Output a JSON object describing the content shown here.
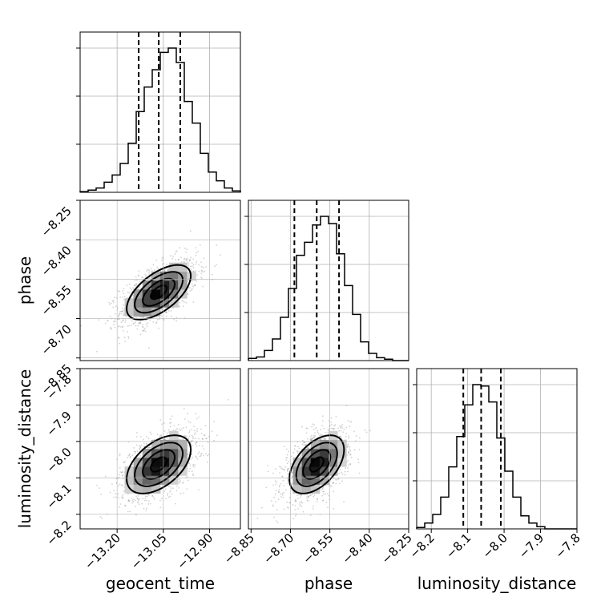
{
  "chart_data": {
    "type": "corner",
    "parameters": [
      "geocent_time",
      "phase",
      "luminosity_distance"
    ],
    "axis_labels": {
      "x": [
        "geocent_time",
        "phase",
        "luminosity_distance"
      ],
      "y": [
        "phase",
        "luminosity_distance"
      ]
    },
    "ranges": {
      "geocent_time": [
        -13.32,
        -12.8
      ],
      "phase": [
        -8.86,
        -8.25
      ],
      "luminosity_distance": [
        -8.24,
        -7.8
      ]
    },
    "ticks": {
      "geocent_time": {
        "values": [
          -13.2,
          -13.05,
          -12.9
        ],
        "labels": [
          "−13.20",
          "−13.05",
          "−12.90"
        ]
      },
      "phase": {
        "values": [
          -8.85,
          -8.7,
          -8.55,
          -8.4,
          -8.25
        ],
        "labels": [
          "−8.85",
          "−8.70",
          "−8.55",
          "−8.40",
          "−8.25"
        ]
      },
      "luminosity_distance": {
        "x_values": [
          -8.2,
          -8.1,
          -8.0,
          -7.9,
          -7.8
        ],
        "x_labels": [
          "−8.2",
          "−8.1",
          "−8.0",
          "−7.9",
          "−7.8"
        ],
        "y_values": [
          -8.2,
          -8.1,
          -8.0,
          -7.9,
          -7.8
        ],
        "y_labels": [
          "−8.2",
          "−8.1",
          "−8.0",
          "−7.9",
          "−7.8"
        ]
      }
    },
    "quantiles": {
      "geocent_time": [
        -13.13,
        -13.065,
        -12.995
      ],
      "phase": [
        -8.685,
        -8.6,
        -8.515
      ],
      "luminosity_distance": [
        -8.112,
        -8.063,
        -8.009
      ]
    },
    "histograms": {
      "geocent_time": {
        "edges": [
          -13.32,
          -13.294,
          -13.268,
          -13.242,
          -13.216,
          -13.19,
          -13.164,
          -13.138,
          -13.112,
          -13.086,
          -13.06,
          -13.034,
          -13.008,
          -12.982,
          -12.956,
          -12.93,
          -12.904,
          -12.878,
          -12.852,
          -12.826,
          -12.8
        ],
        "counts": [
          0.005,
          0.015,
          0.03,
          0.07,
          0.12,
          0.2,
          0.34,
          0.56,
          0.73,
          0.85,
          0.97,
          1.0,
          0.9,
          0.63,
          0.48,
          0.27,
          0.14,
          0.08,
          0.03,
          0.01
        ]
      },
      "phase": {
        "edges": [
          -8.86,
          -8.8295,
          -8.799,
          -8.7685,
          -8.738,
          -8.7075,
          -8.677,
          -8.6465,
          -8.616,
          -8.5855,
          -8.555,
          -8.5245,
          -8.494,
          -8.4635,
          -8.433,
          -8.4025,
          -8.372,
          -8.3415,
          -8.311,
          -8.2805,
          -8.25
        ],
        "counts": [
          0.015,
          0.025,
          0.07,
          0.15,
          0.3,
          0.5,
          0.73,
          0.82,
          0.94,
          1.0,
          0.95,
          0.74,
          0.52,
          0.32,
          0.13,
          0.05,
          0.02,
          0.01,
          0.0,
          0.0
        ]
      },
      "luminosity_distance": {
        "edges": [
          -8.24,
          -8.218,
          -8.196,
          -8.174,
          -8.152,
          -8.13,
          -8.108,
          -8.086,
          -8.064,
          -8.042,
          -8.02,
          -7.998,
          -7.976,
          -7.954,
          -7.932,
          -7.91,
          -7.888,
          -7.866,
          -7.844,
          -7.822,
          -7.8
        ],
        "counts": [
          0.01,
          0.04,
          0.1,
          0.22,
          0.43,
          0.64,
          0.86,
          1.0,
          0.99,
          0.88,
          0.63,
          0.4,
          0.22,
          0.09,
          0.04,
          0.015,
          0.0,
          0.0,
          0.0,
          0.0
        ]
      }
    },
    "joint": [
      {
        "x": "geocent_time",
        "y": "phase",
        "mean": [
          -13.065,
          -8.6
        ],
        "std": [
          0.052,
          0.052
        ],
        "corr": 0.6
      },
      {
        "x": "geocent_time",
        "y": "luminosity_distance",
        "mean": [
          -13.065,
          -8.063
        ],
        "std": [
          0.052,
          0.04
        ],
        "corr": 0.5
      },
      {
        "x": "phase",
        "y": "luminosity_distance",
        "mean": [
          -8.6,
          -8.063
        ],
        "std": [
          0.052,
          0.04
        ],
        "corr": 0.5
      }
    ],
    "contour_levels_sigma": [
      0.5,
      1.0,
      1.5,
      2.0
    ],
    "grid": true,
    "colors": {
      "line": "#000000",
      "grid": "#b0b0b0",
      "scatter": "#7f7f7f"
    }
  }
}
